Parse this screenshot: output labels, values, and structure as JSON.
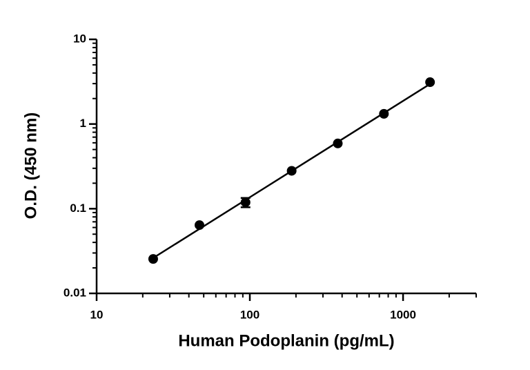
{
  "chart_data": {
    "type": "scatter",
    "x_label": "Human Podoplanin (pg/mL)",
    "y_label": "O.D. (450 nm)",
    "x_scale": "log",
    "y_scale": "log",
    "xlim": [
      10,
      3000
    ],
    "ylim": [
      0.01,
      10
    ],
    "xticks": [
      10,
      100,
      1000
    ],
    "yticks": [
      0.01,
      0.1,
      1,
      10
    ],
    "fit_line": true,
    "series": [
      {
        "color": "#000000",
        "x": [
          23.4,
          46.9,
          93.75,
          187.5,
          375,
          750,
          1500
        ],
        "values": [
          0.0255,
          0.064,
          0.119,
          0.28,
          0.59,
          1.32,
          3.12
        ],
        "errors": [
          null,
          null,
          0.015,
          null,
          null,
          null,
          null
        ]
      }
    ]
  }
}
